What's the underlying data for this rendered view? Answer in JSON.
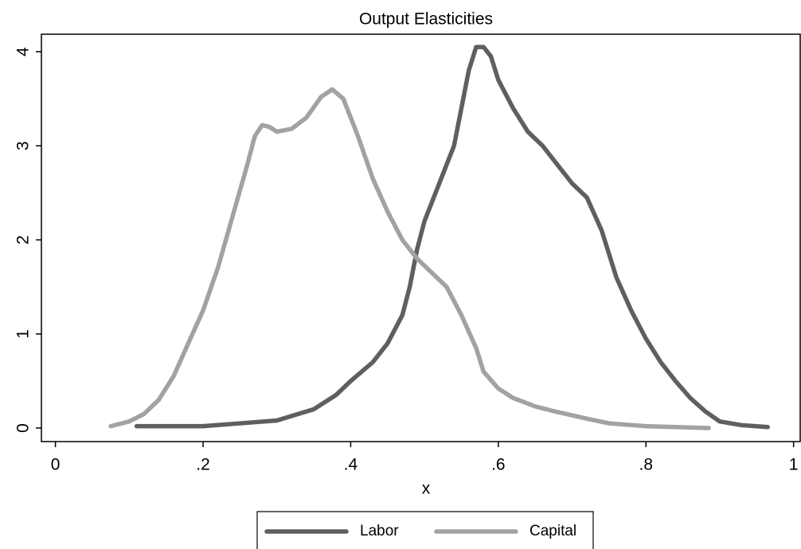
{
  "chart_data": {
    "type": "line",
    "title": "Output Elasticities",
    "x_label": "x",
    "xlim": [
      -0.019,
      1.009
    ],
    "xticks": [
      0,
      {
        "value": 0.2,
        "label": ".2"
      },
      {
        "value": 0.4,
        "label": ".4"
      },
      {
        "value": 0.6,
        "label": ".6"
      },
      {
        "value": 0.8,
        "label": ".8"
      },
      1
    ],
    "ylim": [
      -0.144,
      4.186
    ],
    "yticks": [
      0,
      1,
      2,
      3,
      4
    ],
    "legend": "bottom",
    "grid": false,
    "series": [
      {
        "name": "Labor",
        "color": "#5f5f5f",
        "x": [
          0.11,
          0.15,
          0.2,
          0.25,
          0.3,
          0.35,
          0.38,
          0.4,
          0.43,
          0.45,
          0.47,
          0.48,
          0.49,
          0.5,
          0.52,
          0.54,
          0.55,
          0.56,
          0.57,
          0.58,
          0.59,
          0.6,
          0.62,
          0.64,
          0.66,
          0.68,
          0.7,
          0.72,
          0.74,
          0.76,
          0.78,
          0.8,
          0.82,
          0.84,
          0.86,
          0.88,
          0.9,
          0.93,
          0.965
        ],
        "values": [
          0.02,
          0.02,
          0.02,
          0.05,
          0.08,
          0.2,
          0.35,
          0.5,
          0.7,
          0.9,
          1.2,
          1.5,
          1.9,
          2.2,
          2.6,
          3.0,
          3.4,
          3.8,
          4.05,
          4.05,
          3.95,
          3.7,
          3.4,
          3.15,
          3.0,
          2.8,
          2.6,
          2.45,
          2.1,
          1.6,
          1.25,
          0.95,
          0.7,
          0.5,
          0.32,
          0.18,
          0.07,
          0.03,
          0.01
        ]
      },
      {
        "name": "Capital",
        "color": "#a2a2a2",
        "x": [
          0.075,
          0.1,
          0.12,
          0.14,
          0.16,
          0.18,
          0.2,
          0.22,
          0.24,
          0.26,
          0.27,
          0.28,
          0.29,
          0.3,
          0.32,
          0.34,
          0.36,
          0.375,
          0.39,
          0.41,
          0.43,
          0.45,
          0.47,
          0.49,
          0.51,
          0.53,
          0.55,
          0.57,
          0.58,
          0.6,
          0.62,
          0.65,
          0.68,
          0.72,
          0.75,
          0.8,
          0.885
        ],
        "values": [
          0.02,
          0.07,
          0.15,
          0.3,
          0.55,
          0.9,
          1.25,
          1.7,
          2.25,
          2.8,
          3.1,
          3.22,
          3.2,
          3.15,
          3.18,
          3.3,
          3.52,
          3.6,
          3.5,
          3.1,
          2.65,
          2.3,
          2.0,
          1.8,
          1.65,
          1.5,
          1.2,
          0.85,
          0.6,
          0.42,
          0.32,
          0.23,
          0.17,
          0.1,
          0.05,
          0.02,
          0.0
        ]
      }
    ]
  }
}
